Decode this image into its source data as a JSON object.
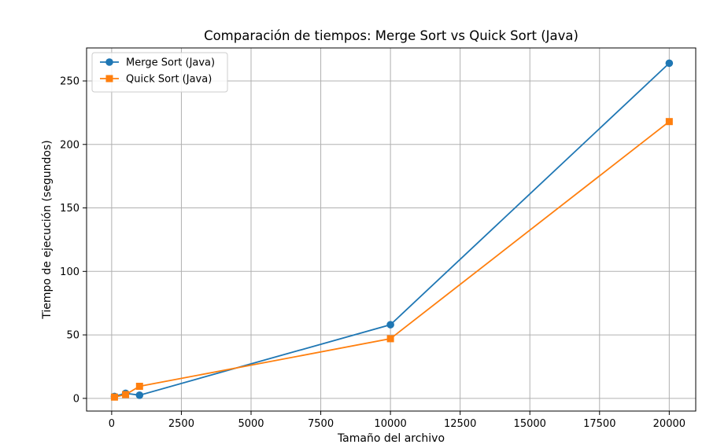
{
  "chart_data": {
    "type": "line",
    "title": "Comparación de tiempos: Merge Sort vs Quick Sort (Java)",
    "xlabel": "Tamaño del archivo",
    "ylabel": "Tiempo de ejecución (segundos)",
    "xlim": [
      -900,
      20950
    ],
    "ylim": [
      -10,
      276
    ],
    "xticks": [
      0,
      2500,
      5000,
      7500,
      10000,
      12500,
      15000,
      17500,
      20000
    ],
    "xtick_labels": [
      "0",
      "2500",
      "5000",
      "7500",
      "10000",
      "12500",
      "15000",
      "17500",
      "20000"
    ],
    "yticks": [
      0,
      50,
      100,
      150,
      200,
      250
    ],
    "ytick_labels": [
      "0",
      "50",
      "100",
      "150",
      "200",
      "250"
    ],
    "grid": true,
    "legend_position": "upper-left",
    "series": [
      {
        "name": "Merge Sort (Java)",
        "color": "#1f77b4",
        "marker": "circle",
        "x": [
          100,
          500,
          1000,
          10000,
          20000
        ],
        "y": [
          1.5,
          4,
          2.5,
          58,
          264
        ]
      },
      {
        "name": "Quick Sort (Java)",
        "color": "#ff7f0e",
        "marker": "square",
        "x": [
          100,
          500,
          1000,
          10000,
          20000
        ],
        "y": [
          1,
          3,
          9.5,
          47,
          218
        ]
      }
    ]
  }
}
